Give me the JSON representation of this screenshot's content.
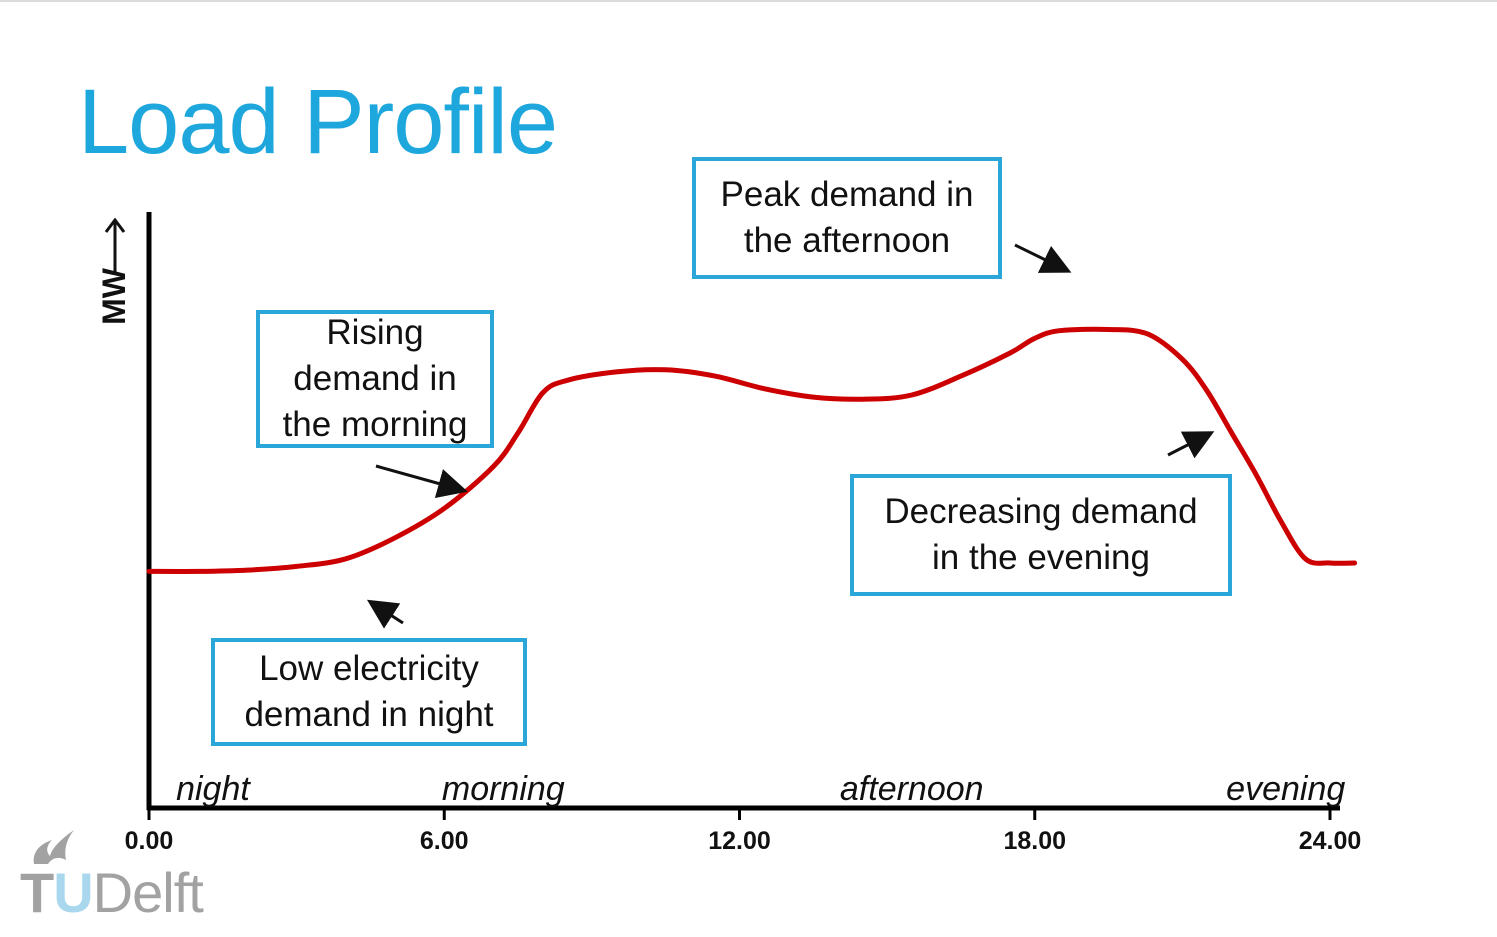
{
  "slide": {
    "title": "Load Profile"
  },
  "chart_data": {
    "type": "line",
    "title": "Load Profile",
    "xlabel": "",
    "ylabel": "MW",
    "xlim": [
      0,
      24.5
    ],
    "ylim": [
      0,
      100
    ],
    "x_ticks": [
      "0.00",
      "6.00",
      "12.00",
      "18.00",
      "24.00"
    ],
    "x_tick_values": [
      0,
      6,
      12,
      18,
      24
    ],
    "period_labels": [
      {
        "text": "night",
        "x": 1.3
      },
      {
        "text": "morning",
        "x": 7.2
      },
      {
        "text": "afternoon",
        "x": 15.5
      },
      {
        "text": "evening",
        "x": 23.1
      }
    ],
    "series": [
      {
        "color": "#cc0000",
        "points": [
          [
            0,
            33
          ],
          [
            1,
            33
          ],
          [
            2,
            33.3
          ],
          [
            3,
            34.2
          ],
          [
            4,
            36
          ],
          [
            5,
            41
          ],
          [
            6,
            48
          ],
          [
            7,
            58
          ],
          [
            7.5,
            66
          ],
          [
            8,
            75.5
          ],
          [
            8.5,
            78.5
          ],
          [
            9.5,
            80.5
          ],
          [
            10.5,
            81
          ],
          [
            11.5,
            79.5
          ],
          [
            12.5,
            76.5
          ],
          [
            13.5,
            74.5
          ],
          [
            14.5,
            74
          ],
          [
            15.5,
            75
          ],
          [
            16.5,
            79.5
          ],
          [
            17.5,
            85
          ],
          [
            18,
            88.5
          ],
          [
            18.5,
            90.3
          ],
          [
            19.5,
            90.6
          ],
          [
            20.3,
            89.5
          ],
          [
            21,
            83.5
          ],
          [
            21.5,
            76
          ],
          [
            22,
            66
          ],
          [
            22.5,
            56
          ],
          [
            23,
            45
          ],
          [
            23.5,
            36
          ],
          [
            24,
            35
          ],
          [
            24.5,
            35
          ]
        ]
      }
    ],
    "annotations": [
      {
        "lines": [
          "Rising",
          "demand in",
          "the morning"
        ]
      },
      {
        "lines": [
          "Peak demand in",
          "the afternoon"
        ]
      },
      {
        "lines": [
          "Decreasing demand",
          "in the evening"
        ]
      },
      {
        "lines": [
          "Low electricity",
          "demand in night"
        ]
      }
    ],
    "grid": false,
    "legend": "none"
  },
  "logo": {
    "prefix": "T",
    "highlight": "U",
    "rest": "Delft"
  },
  "colors": {
    "title": "#1ea7dc",
    "curve": "#cc0000",
    "callout_border": "#2aa6d8"
  }
}
